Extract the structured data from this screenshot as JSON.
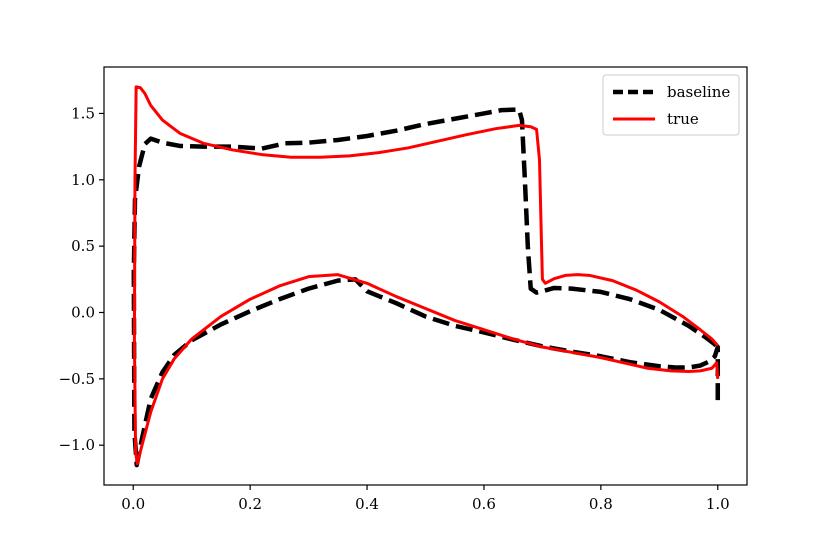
{
  "chart_data": {
    "type": "line",
    "title": "",
    "xlabel": "",
    "ylabel": "",
    "xlim": [
      -0.05,
      1.05
    ],
    "ylim": [
      -1.3,
      1.85
    ],
    "grid": false,
    "legend_position": "top-right",
    "x_ticks": [
      0.0,
      0.2,
      0.4,
      0.6,
      0.8,
      1.0
    ],
    "x_tick_labels": [
      "0.0",
      "0.2",
      "0.4",
      "0.6",
      "0.8",
      "1.0"
    ],
    "y_ticks": [
      -1.0,
      -0.5,
      0.0,
      0.5,
      1.0,
      1.5
    ],
    "y_tick_labels": [
      "−1.0",
      "−0.5",
      "0.0",
      "0.5",
      "1.0",
      "1.5"
    ],
    "series": [
      {
        "name": "baseline",
        "color": "#000000",
        "style": "dashed",
        "points": [
          [
            1.0,
            -0.66
          ],
          [
            1.0,
            -0.26
          ],
          [
            0.995,
            -0.33
          ],
          [
            0.985,
            -0.37
          ],
          [
            0.97,
            -0.4
          ],
          [
            0.95,
            -0.415
          ],
          [
            0.93,
            -0.415
          ],
          [
            0.9,
            -0.405
          ],
          [
            0.85,
            -0.375
          ],
          [
            0.8,
            -0.33
          ],
          [
            0.75,
            -0.295
          ],
          [
            0.7,
            -0.255
          ],
          [
            0.65,
            -0.205
          ],
          [
            0.6,
            -0.15
          ],
          [
            0.55,
            -0.1
          ],
          [
            0.5,
            -0.03
          ],
          [
            0.45,
            0.07
          ],
          [
            0.4,
            0.16
          ],
          [
            0.38,
            0.25
          ],
          [
            0.35,
            0.24
          ],
          [
            0.3,
            0.18
          ],
          [
            0.25,
            0.1
          ],
          [
            0.2,
            0.01
          ],
          [
            0.15,
            -0.09
          ],
          [
            0.1,
            -0.21
          ],
          [
            0.07,
            -0.32
          ],
          [
            0.05,
            -0.45
          ],
          [
            0.03,
            -0.65
          ],
          [
            0.015,
            -0.95
          ],
          [
            0.006,
            -1.15
          ],
          [
            0.002,
            -0.9
          ],
          [
            0.001,
            0.3
          ],
          [
            0.003,
            0.85
          ],
          [
            0.01,
            1.1
          ],
          [
            0.02,
            1.27
          ],
          [
            0.03,
            1.31
          ],
          [
            0.05,
            1.28
          ],
          [
            0.08,
            1.255
          ],
          [
            0.12,
            1.25
          ],
          [
            0.17,
            1.25
          ],
          [
            0.22,
            1.235
          ],
          [
            0.26,
            1.275
          ],
          [
            0.3,
            1.28
          ],
          [
            0.35,
            1.3
          ],
          [
            0.4,
            1.33
          ],
          [
            0.45,
            1.37
          ],
          [
            0.5,
            1.42
          ],
          [
            0.55,
            1.46
          ],
          [
            0.6,
            1.5
          ],
          [
            0.63,
            1.525
          ],
          [
            0.66,
            1.53
          ],
          [
            0.665,
            1.45
          ],
          [
            0.67,
            1.0
          ],
          [
            0.675,
            0.5
          ],
          [
            0.68,
            0.18
          ],
          [
            0.69,
            0.15
          ],
          [
            0.7,
            0.16
          ],
          [
            0.72,
            0.185
          ],
          [
            0.75,
            0.18
          ],
          [
            0.8,
            0.155
          ],
          [
            0.85,
            0.1
          ],
          [
            0.9,
            0.02
          ],
          [
            0.95,
            -0.1
          ],
          [
            0.98,
            -0.19
          ],
          [
            0.995,
            -0.24
          ],
          [
            1.0,
            -0.27
          ]
        ]
      },
      {
        "name": "true",
        "color": "#ff0000",
        "style": "solid",
        "points": [
          [
            1.0,
            -0.5
          ],
          [
            0.998,
            -0.38
          ],
          [
            0.99,
            -0.42
          ],
          [
            0.97,
            -0.44
          ],
          [
            0.95,
            -0.445
          ],
          [
            0.92,
            -0.44
          ],
          [
            0.88,
            -0.42
          ],
          [
            0.84,
            -0.38
          ],
          [
            0.8,
            -0.34
          ],
          [
            0.75,
            -0.3
          ],
          [
            0.7,
            -0.26
          ],
          [
            0.65,
            -0.2
          ],
          [
            0.6,
            -0.13
          ],
          [
            0.55,
            -0.06
          ],
          [
            0.5,
            0.03
          ],
          [
            0.45,
            0.12
          ],
          [
            0.4,
            0.22
          ],
          [
            0.35,
            0.285
          ],
          [
            0.3,
            0.27
          ],
          [
            0.25,
            0.2
          ],
          [
            0.2,
            0.1
          ],
          [
            0.15,
            -0.03
          ],
          [
            0.1,
            -0.2
          ],
          [
            0.07,
            -0.35
          ],
          [
            0.05,
            -0.5
          ],
          [
            0.03,
            -0.75
          ],
          [
            0.015,
            -1.0
          ],
          [
            0.007,
            -1.14
          ],
          [
            0.004,
            -1.05
          ],
          [
            0.002,
            -0.2
          ],
          [
            0.003,
            1.0
          ],
          [
            0.005,
            1.7
          ],
          [
            0.012,
            1.695
          ],
          [
            0.02,
            1.65
          ],
          [
            0.03,
            1.56
          ],
          [
            0.05,
            1.45
          ],
          [
            0.08,
            1.35
          ],
          [
            0.12,
            1.275
          ],
          [
            0.17,
            1.225
          ],
          [
            0.22,
            1.19
          ],
          [
            0.27,
            1.17
          ],
          [
            0.32,
            1.17
          ],
          [
            0.37,
            1.18
          ],
          [
            0.42,
            1.205
          ],
          [
            0.47,
            1.24
          ],
          [
            0.52,
            1.29
          ],
          [
            0.57,
            1.34
          ],
          [
            0.62,
            1.385
          ],
          [
            0.66,
            1.41
          ],
          [
            0.68,
            1.4
          ],
          [
            0.69,
            1.38
          ],
          [
            0.695,
            1.15
          ],
          [
            0.698,
            0.6
          ],
          [
            0.7,
            0.25
          ],
          [
            0.705,
            0.22
          ],
          [
            0.72,
            0.255
          ],
          [
            0.74,
            0.28
          ],
          [
            0.76,
            0.285
          ],
          [
            0.78,
            0.28
          ],
          [
            0.82,
            0.24
          ],
          [
            0.86,
            0.17
          ],
          [
            0.9,
            0.08
          ],
          [
            0.94,
            -0.03
          ],
          [
            0.97,
            -0.13
          ],
          [
            0.99,
            -0.2
          ],
          [
            1.0,
            -0.25
          ]
        ]
      }
    ]
  }
}
